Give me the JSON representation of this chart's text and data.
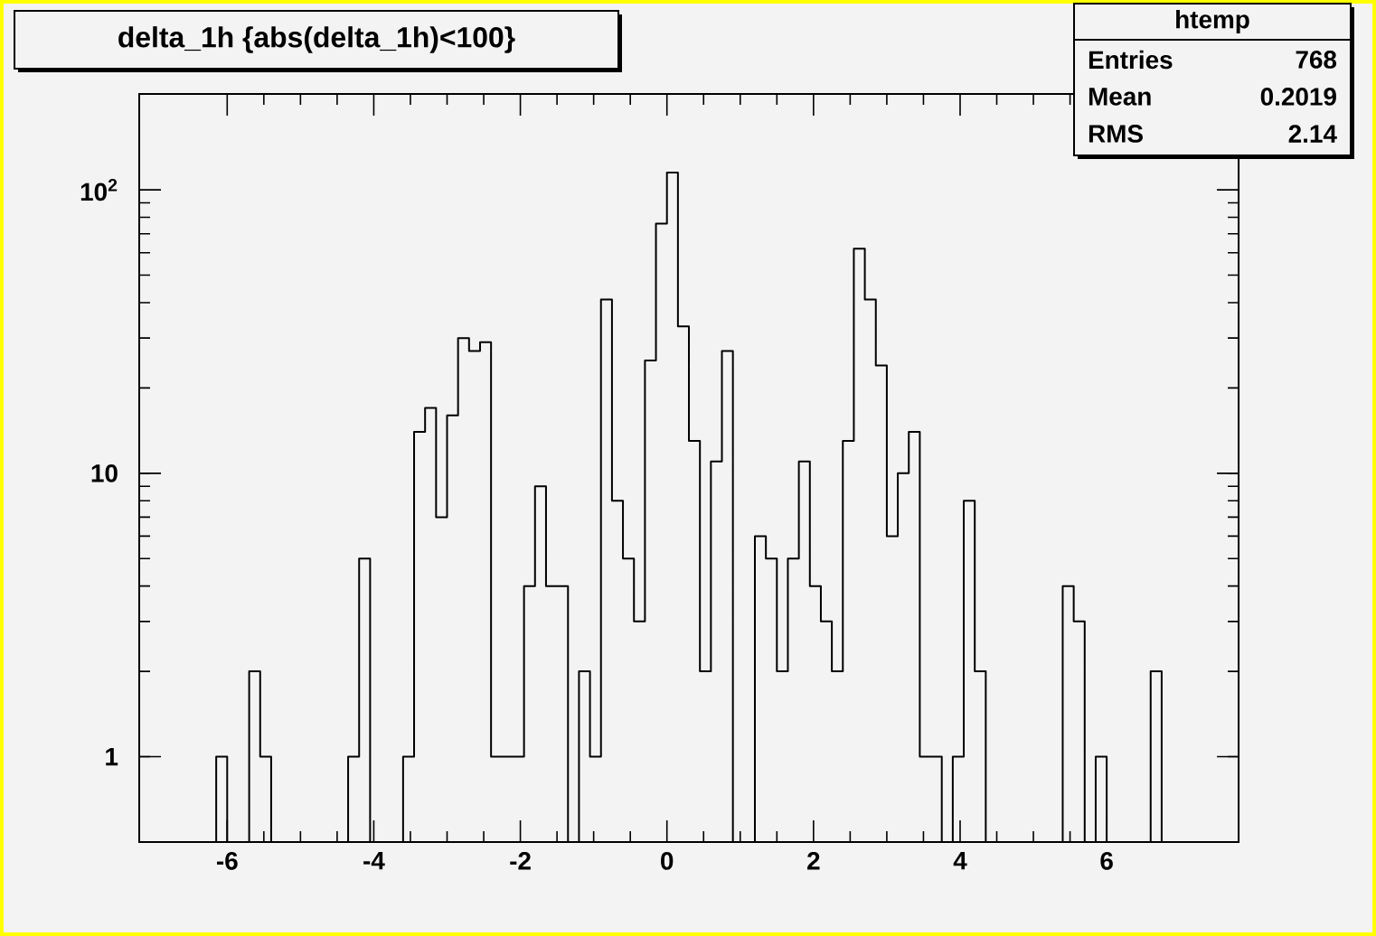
{
  "chart_data": {
    "type": "histogram",
    "title": "delta_1h {abs(delta_1h)<100}",
    "annotations": [
      "htemp",
      "Entries",
      "768",
      "Mean",
      "0.2019",
      "RMS",
      "2.14"
    ],
    "bins": [
      -7.2,
      -7.05,
      -6.9,
      -6.75,
      -6.6,
      -6.45,
      -6.3,
      -6.15,
      -6.0,
      -5.85,
      -5.7,
      -5.55,
      -5.4,
      -5.25,
      -5.1,
      -4.95,
      -4.8,
      -4.65,
      -4.5,
      -4.35,
      -4.2,
      -4.05,
      -3.9,
      -3.75,
      -3.6,
      -3.45,
      -3.3,
      -3.15,
      -3.0,
      -2.85,
      -2.7,
      -2.55,
      -2.4,
      -2.25,
      -2.1,
      -1.95,
      -1.8,
      -1.65,
      -1.5,
      -1.35,
      -1.2,
      -1.05,
      -0.9,
      -0.75,
      -0.6,
      -0.45,
      -0.3,
      -0.15,
      0,
      0.15,
      0.3,
      0.45,
      0.6,
      0.75,
      0.9,
      1.05,
      1.2,
      1.35,
      1.5,
      1.65,
      1.8,
      1.95,
      2.1,
      2.25,
      2.4,
      2.55,
      2.7,
      2.85,
      3.0,
      3.15,
      3.3,
      3.45,
      3.6,
      3.75,
      3.9,
      4.05,
      4.2,
      4.35,
      4.5,
      4.65,
      4.8,
      4.95,
      5.1,
      5.25,
      5.4,
      5.55,
      5.7,
      5.85,
      6.0,
      6.15,
      6.3,
      6.45,
      6.6,
      6.75,
      6.9,
      7.05,
      7.2,
      7.35,
      7.5,
      7.65,
      7.8
    ],
    "values": [
      null,
      null,
      null,
      null,
      null,
      null,
      null,
      1,
      null,
      null,
      2,
      1,
      null,
      null,
      null,
      null,
      null,
      null,
      null,
      1,
      5,
      null,
      null,
      null,
      1,
      14,
      17,
      7,
      16,
      30,
      27,
      29,
      1,
      1,
      1,
      4,
      9,
      4,
      4,
      null,
      2,
      1,
      41,
      8,
      5,
      3,
      25,
      76,
      115,
      33,
      13,
      2,
      11,
      27,
      null,
      null,
      6,
      5,
      2,
      5,
      11,
      4,
      3,
      2,
      13,
      62,
      41,
      24,
      6,
      10,
      14,
      1,
      1,
      null,
      1,
      8,
      2,
      null,
      null,
      null,
      null,
      null,
      null,
      null,
      4,
      3,
      null,
      1,
      null,
      null,
      null,
      null,
      2,
      null,
      null,
      null,
      null,
      null,
      null,
      null
    ],
    "color": "#000000",
    "log": "y",
    "xlim": [
      -7.2,
      7.8
    ],
    "ylim": [
      0.5,
      218
    ],
    "xticks": [
      -6,
      -4,
      -2,
      0,
      2,
      4,
      6
    ],
    "yticks": [
      1,
      10,
      {
        "value": 100,
        "label": "10$^{2}$"
      }
    ],
    "grid": false
  }
}
